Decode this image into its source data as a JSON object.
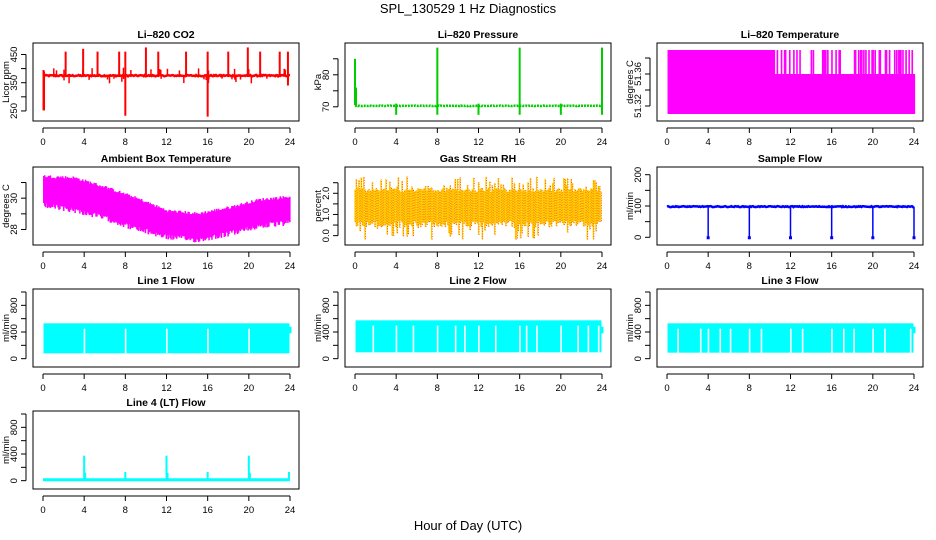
{
  "figure": {
    "title": "SPL_130529  1 Hz Diagnostics",
    "xlabel": "Hour of Day (UTC)"
  },
  "chart_data": [
    {
      "id": "co2",
      "type": "line",
      "title": "Li–820 CO2",
      "ylabel": "Licor ppm",
      "color": "#ff0000",
      "xlim": [
        0,
        24
      ],
      "ylim": [
        225,
        480
      ],
      "xticks": [
        0,
        4,
        8,
        12,
        16,
        20,
        24
      ],
      "yticks": [
        250,
        300,
        350,
        400,
        450
      ],
      "ytick_labels": [
        "250",
        "",
        "350",
        "",
        "450"
      ],
      "baseline": 375,
      "noise": 4,
      "spikes": [
        {
          "x": 0.05,
          "lo": 252,
          "hi": 395
        },
        {
          "x": 0.1,
          "lo": 252,
          "hi": 390
        },
        {
          "x": 2.2,
          "lo": 370,
          "hi": 460
        },
        {
          "x": 3.9,
          "lo": 370,
          "hi": 470
        },
        {
          "x": 5.3,
          "lo": 370,
          "hi": 460
        },
        {
          "x": 7.4,
          "lo": 370,
          "hi": 460
        },
        {
          "x": 8.0,
          "lo": 233,
          "hi": 460
        },
        {
          "x": 10.0,
          "lo": 370,
          "hi": 475
        },
        {
          "x": 11.2,
          "lo": 370,
          "hi": 460
        },
        {
          "x": 13.9,
          "lo": 370,
          "hi": 460
        },
        {
          "x": 16.0,
          "lo": 230,
          "hi": 460
        },
        {
          "x": 18.0,
          "lo": 370,
          "hi": 460
        },
        {
          "x": 19.9,
          "lo": 370,
          "hi": 475
        },
        {
          "x": 21.1,
          "lo": 370,
          "hi": 460
        },
        {
          "x": 23.0,
          "lo": 370,
          "hi": 460
        },
        {
          "x": 23.8,
          "lo": 340,
          "hi": 460
        }
      ]
    },
    {
      "id": "pressure",
      "type": "line",
      "title": "Li–820 Pressure",
      "ylabel": "kPa",
      "color": "#00cc00",
      "xlim": [
        0,
        24
      ],
      "ylim": [
        66.5,
        89
      ],
      "xticks": [
        0,
        4,
        8,
        12,
        16,
        20,
        24
      ],
      "yticks": [
        70,
        75,
        80,
        85
      ],
      "ytick_labels": [
        "70",
        "",
        "80",
        ""
      ],
      "baseline": 70.3,
      "noise": 0.15,
      "spikes": [
        {
          "x": 0.0,
          "lo": 70.5,
          "hi": 85
        },
        {
          "x": 0.1,
          "lo": 70.5,
          "hi": 76
        },
        {
          "x": 4.0,
          "lo": 67.5,
          "hi": 71
        },
        {
          "x": 8.0,
          "lo": 67.5,
          "hi": 88.5
        },
        {
          "x": 12.0,
          "lo": 67.5,
          "hi": 71
        },
        {
          "x": 16.0,
          "lo": 67.5,
          "hi": 88.5
        },
        {
          "x": 20.0,
          "lo": 67.5,
          "hi": 71
        },
        {
          "x": 24.0,
          "lo": 67.5,
          "hi": 88.5
        }
      ]
    },
    {
      "id": "licor_temp",
      "type": "area",
      "title": "Li–820 Temperature",
      "ylabel": "degrees C",
      "color": "#ff00ff",
      "xlim": [
        0,
        24
      ],
      "ylim": [
        51.305,
        51.395
      ],
      "xticks": [
        0,
        4,
        8,
        12,
        16,
        20,
        24
      ],
      "yticks": [
        51.32,
        51.34,
        51.36,
        51.38
      ],
      "ytick_labels": [
        "51.32",
        "",
        "51.36",
        ""
      ],
      "band_low": 51.31,
      "band_mid": 51.36,
      "band_high": 51.39,
      "switch_to_mid_after_hour": 10.4
    },
    {
      "id": "box_temp",
      "type": "area",
      "title": "Ambient Box Temperature",
      "ylabel": "degrees C",
      "color": "#ff00ff",
      "xlim": [
        0,
        24
      ],
      "ylim": [
        27.2,
        31.8
      ],
      "xticks": [
        0,
        4,
        8,
        12,
        16,
        20,
        24
      ],
      "yticks": [
        28,
        29,
        30,
        31
      ],
      "ytick_labels": [
        "28",
        "",
        "30",
        ""
      ],
      "trend": [
        {
          "x": 0,
          "lo": 29.7,
          "hi": 31.3
        },
        {
          "x": 3,
          "lo": 29.4,
          "hi": 31.2
        },
        {
          "x": 6,
          "lo": 28.9,
          "hi": 30.6
        },
        {
          "x": 9,
          "lo": 28.2,
          "hi": 29.9
        },
        {
          "x": 12,
          "lo": 27.7,
          "hi": 29.1
        },
        {
          "x": 15,
          "lo": 27.5,
          "hi": 28.9
        },
        {
          "x": 18,
          "lo": 27.9,
          "hi": 29.3
        },
        {
          "x": 21,
          "lo": 28.4,
          "hi": 29.8
        },
        {
          "x": 24,
          "lo": 28.6,
          "hi": 30.0
        }
      ]
    },
    {
      "id": "rh",
      "type": "area",
      "title": "Gas Stream RH",
      "ylabel": "percent",
      "color": "#ffcc00",
      "color2": "#ff0000",
      "xlim": [
        0,
        24
      ],
      "ylim": [
        -0.3,
        3.1
      ],
      "xticks": [
        0,
        4,
        8,
        12,
        16,
        20,
        24
      ],
      "yticks": [
        0.0,
        0.5,
        1.0,
        1.5,
        2.0,
        2.5
      ],
      "ytick_labels": [
        "0.0",
        "",
        "1.0",
        "",
        "2.0",
        ""
      ],
      "band_low": 0.7,
      "band_high": 2.05,
      "max_excursion": 2.8,
      "min_excursion": -0.2
    },
    {
      "id": "sample_flow",
      "type": "line",
      "title": "Sample Flow",
      "ylabel": "ml/min",
      "color": "#0000ff",
      "xlim": [
        0,
        24
      ],
      "ylim": [
        -15,
        215
      ],
      "xticks": [
        0,
        4,
        8,
        12,
        16,
        20,
        24
      ],
      "yticks": [
        0,
        50,
        100,
        150,
        200
      ],
      "ytick_labels": [
        "0",
        "",
        "100",
        "",
        "200"
      ],
      "baseline": 98,
      "noise": 3,
      "dips": [
        4,
        8,
        12,
        16,
        20,
        24
      ],
      "dip_value": -3
    },
    {
      "id": "line1",
      "type": "area",
      "title": "Line 1 Flow",
      "ylabel": "ml/min",
      "color": "#00ffff",
      "xlim": [
        0,
        24
      ],
      "ylim": [
        -80,
        1000
      ],
      "xticks": [
        0,
        4,
        8,
        12,
        16,
        20,
        24
      ],
      "yticks": [
        0,
        200,
        400,
        600,
        800,
        1000
      ],
      "ytick_labels": [
        "0",
        "",
        "400",
        "",
        "800",
        ""
      ],
      "band_low": 80,
      "band_high": 530,
      "gaps": [
        3.95,
        7.95,
        11.95,
        15.95,
        19.95,
        23.95
      ]
    },
    {
      "id": "line2",
      "type": "area",
      "title": "Line 2 Flow",
      "ylabel": "ml/min",
      "color": "#00ffff",
      "xlim": [
        0,
        24
      ],
      "ylim": [
        -80,
        1000
      ],
      "xticks": [
        0,
        4,
        8,
        12,
        16,
        20,
        24
      ],
      "yticks": [
        0,
        200,
        400,
        600,
        800,
        1000
      ],
      "ytick_labels": [
        "0",
        "",
        "400",
        "",
        "800",
        ""
      ],
      "band_low": 95,
      "band_high": 575,
      "gaps": [
        1.7,
        3.95,
        5.6,
        7.95,
        9.7,
        10.6,
        11.95,
        13.6,
        15.95,
        16.6,
        17.6,
        19.95,
        21.6,
        22.6,
        23.6
      ]
    },
    {
      "id": "line3",
      "type": "area",
      "title": "Line 3 Flow",
      "ylabel": "ml/min",
      "color": "#00ffff",
      "xlim": [
        0,
        24
      ],
      "ylim": [
        -80,
        1000
      ],
      "xticks": [
        0,
        4,
        8,
        12,
        16,
        20,
        24
      ],
      "yticks": [
        0,
        200,
        400,
        600,
        800,
        1000
      ],
      "ytick_labels": [
        "0",
        "",
        "400",
        "",
        "800",
        ""
      ],
      "band_low": 90,
      "band_high": 530,
      "gaps": [
        1.0,
        3.2,
        3.95,
        5.1,
        6.1,
        7.95,
        9.1,
        11.95,
        13.1,
        15.95,
        17.1,
        18.1,
        19.95,
        21.1,
        23.6
      ]
    },
    {
      "id": "line4",
      "type": "line",
      "title": "Line 4 (LT) Flow",
      "ylabel": "ml/min",
      "color": "#00ffff",
      "xlim": [
        0,
        24
      ],
      "ylim": [
        -80,
        1000
      ],
      "xticks": [
        0,
        4,
        8,
        12,
        16,
        20,
        24
      ],
      "yticks": [
        0,
        200,
        400,
        600,
        800,
        1000
      ],
      "ytick_labels": [
        "0",
        "",
        "400",
        "",
        "800",
        ""
      ],
      "baseline": 15,
      "spikes": [
        {
          "x": 4.0,
          "lo": 15,
          "hi": 375
        },
        {
          "x": 4.1,
          "lo": 15,
          "hi": 120
        },
        {
          "x": 8.0,
          "lo": 15,
          "hi": 130
        },
        {
          "x": 12.0,
          "lo": 15,
          "hi": 375
        },
        {
          "x": 12.1,
          "lo": 15,
          "hi": 120
        },
        {
          "x": 16.0,
          "lo": 15,
          "hi": 130
        },
        {
          "x": 20.0,
          "lo": 15,
          "hi": 375
        },
        {
          "x": 20.1,
          "lo": 15,
          "hi": 120
        },
        {
          "x": 23.9,
          "lo": 15,
          "hi": 130
        }
      ]
    }
  ]
}
